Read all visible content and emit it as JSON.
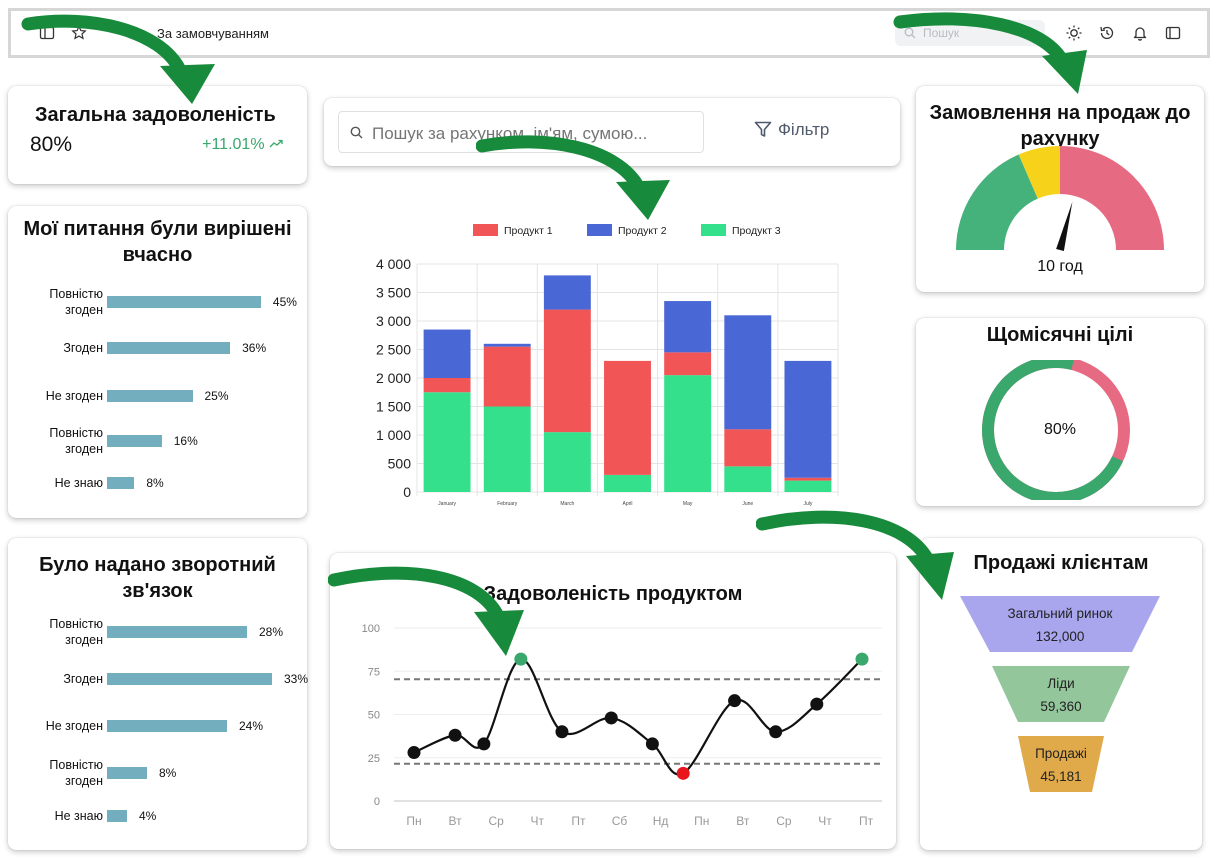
{
  "topbar": {
    "breadcrumb": "За замовчуванням",
    "search_placeholder": "Пошук",
    "icons": [
      "sidebar-icon",
      "star-icon",
      "sun-icon",
      "history-icon",
      "bell-icon",
      "panel-icon"
    ]
  },
  "kpi": {
    "title": "Загальна задоволеність",
    "value": "80%",
    "change": "+11.01%"
  },
  "survey1": {
    "title": "Мої питання були вирішені вчасно",
    "rows": [
      {
        "label": "Повністю згоден",
        "value": 45,
        "pct": "45%"
      },
      {
        "label": "Згоден",
        "value": 36,
        "pct": "36%"
      },
      {
        "label": "Не згоден",
        "value": 25,
        "pct": "25%"
      },
      {
        "label": "Повністю згоден",
        "value": 16,
        "pct": "16%"
      },
      {
        "label": "Не знаю",
        "value": 8,
        "pct": "8%"
      }
    ]
  },
  "survey2": {
    "title": "Було надано зворотний зв'язок",
    "rows": [
      {
        "label": "Повністю згоден",
        "value": 28,
        "pct": "28%"
      },
      {
        "label": "Згоден",
        "value": 33,
        "pct": "33%"
      },
      {
        "label": "Не згоден",
        "value": 24,
        "pct": "24%"
      },
      {
        "label": "Повністю згоден",
        "value": 8,
        "pct": "8%"
      },
      {
        "label": "Не знаю",
        "value": 4,
        "pct": "4%"
      }
    ]
  },
  "search": {
    "placeholder": "Пошук за рахунком, ім'ям, сумою...",
    "filter_label": "Фільтр"
  },
  "gauge": {
    "title": "Замовлення на продаж до рахунку",
    "value_label": "10 год",
    "value_fraction": 0.58
  },
  "donut": {
    "title": "Щомісячні цілі",
    "value_label": "80%",
    "value_fraction": 0.8
  },
  "line": {
    "title": "Задоволеність продуктом"
  },
  "funnel": {
    "title": "Продажі клієнтам",
    "stages": [
      {
        "name": "Загальний ринок",
        "value": "132,000",
        "color": "#a9a6ee"
      },
      {
        "name": "Ліди",
        "value": "59,360",
        "color": "#94c69c"
      },
      {
        "name": "Продажі",
        "value": "45,181",
        "color": "#e0aa4a"
      }
    ]
  },
  "colors": {
    "green": "#3aa76d",
    "survey_bar": "#73aebf",
    "arrow": "#178a3c"
  },
  "chart_data": [
    {
      "type": "bar",
      "stacked": true,
      "categories": [
        "January",
        "February",
        "March",
        "April",
        "May",
        "June",
        "July"
      ],
      "series": [
        {
          "name": "Продукт 1",
          "color": "#f25555",
          "values": [
            250,
            1050,
            2150,
            2000,
            400,
            650,
            50
          ]
        },
        {
          "name": "Продукт 2",
          "color": "#4a67d6",
          "values": [
            850,
            50,
            600,
            0,
            900,
            2000,
            2050
          ]
        },
        {
          "name": "Продукт 3",
          "color": "#34e08c",
          "values": [
            1750,
            1500,
            1050,
            300,
            2050,
            450,
            200
          ]
        }
      ],
      "ylim": [
        0,
        4000
      ],
      "yticks": [
        "0",
        "500",
        "1 000",
        "1 500",
        "2 000",
        "2 500",
        "3 000",
        "3 500",
        "4 000"
      ],
      "legend": "top",
      "grid": true
    },
    {
      "type": "line",
      "title": "Задоволеність продуктом",
      "categories": [
        "Пн",
        "Вт",
        "Ср",
        "Чт",
        "Пт",
        "Сб",
        "Нд",
        "Пн",
        "Вт",
        "Ср",
        "Чт",
        "Пт"
      ],
      "x": [
        0,
        1,
        1.7,
        2.6,
        3.6,
        4.8,
        5.8,
        6.55,
        7.8,
        8.8,
        9.8,
        10.9
      ],
      "values": [
        28,
        38,
        33,
        82,
        40,
        48,
        33,
        16,
        58,
        40,
        56,
        82
      ],
      "point_colors": [
        "#111",
        "#111",
        "#111",
        "#3aa76d",
        "#111",
        "#111",
        "#111",
        "#e8141e",
        "#111",
        "#111",
        "#111",
        "#3aa76d"
      ],
      "yticks": [
        "0",
        "25",
        "50",
        "75",
        "100"
      ],
      "ylim": [
        0,
        100
      ],
      "reference_lines": [
        75,
        25
      ]
    },
    {
      "type": "bar",
      "title": "Мої питання були вирішені вчасно",
      "categories": [
        "Повністю згоден",
        "Згоден",
        "Не згоден",
        "Повністю згоден",
        "Не знаю"
      ],
      "values": [
        45,
        36,
        25,
        16,
        8
      ]
    },
    {
      "type": "bar",
      "title": "Було надано зворотний зв'язок",
      "categories": [
        "Повністю згоден",
        "Згоден",
        "Не згоден",
        "Повністю згоден",
        "Не знаю"
      ],
      "values": [
        28,
        33,
        24,
        8,
        4
      ]
    }
  ]
}
